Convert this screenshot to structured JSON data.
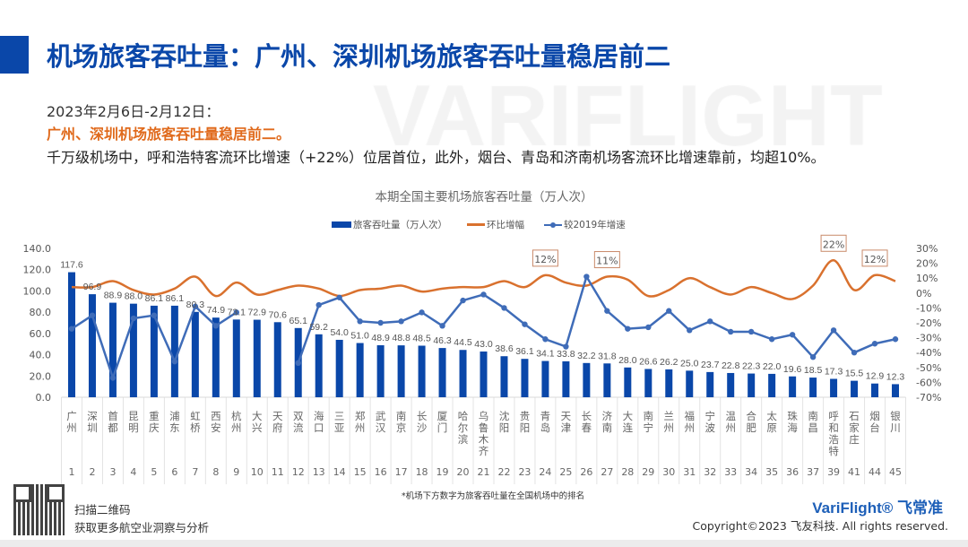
{
  "header": {
    "title": "机场旅客吞吐量：广州、深圳机场旅客吞吐量稳居前二",
    "watermark": "VARIFLIGHT"
  },
  "summary": {
    "date_range": "2023年2月6日-2月12日：",
    "highlight": "广州、深圳机场旅客吞吐量稳居前二。",
    "detail": "千万级机场中，呼和浩特客流环比增速（+22%）位居首位，此外，烟台、青岛和济南机场客流环比增速靠前，均超10%。"
  },
  "colors": {
    "accent": "#0a47a9",
    "bar": "#0a47a9",
    "mom_line": "#d9712e",
    "vs2019_line": "#3f6cb8",
    "highlight_text": "#e06a1c"
  },
  "chart_data": {
    "type": "bar+line",
    "title": "本期全国主要机场旅客吞吐量（万人次）",
    "legend_position": "top",
    "categories": [
      "广州",
      "深圳",
      "首都",
      "昆明",
      "重庆",
      "浦东",
      "虹桥",
      "西安",
      "杭州",
      "大兴",
      "天府",
      "双流",
      "海口",
      "三亚",
      "郑州",
      "武汉",
      "南京",
      "长沙",
      "厦门",
      "哈尔滨",
      "乌鲁木齐",
      "沈阳",
      "贵阳",
      "青岛",
      "天津",
      "长春",
      "济南",
      "大连",
      "南宁",
      "兰州",
      "福州",
      "宁波",
      "温州",
      "合肥",
      "太原",
      "珠海",
      "南昌",
      "呼和浩特",
      "石家庄",
      "烟台",
      "银川"
    ],
    "ranks": [
      "1",
      "2",
      "3",
      "4",
      "5",
      "6",
      "7",
      "8",
      "9",
      "10",
      "11",
      "12",
      "13",
      "14",
      "15",
      "16",
      "17",
      "18",
      "19",
      "20",
      "21",
      "22",
      "23",
      "24",
      "25",
      "26",
      "27",
      "28",
      "29",
      "30",
      "31",
      "32",
      "33",
      "34",
      "35",
      "36",
      "37",
      "39",
      "41",
      "44",
      "45"
    ],
    "series": [
      {
        "name": "旅客吞吐量（万人次）",
        "type": "bar",
        "axis": "left",
        "values": [
          117.6,
          96.9,
          88.9,
          88.0,
          86.1,
          86.1,
          80.3,
          74.9,
          73.1,
          72.9,
          70.6,
          65.1,
          59.2,
          54.0,
          51.0,
          48.9,
          48.8,
          48.5,
          46.3,
          44.5,
          43.0,
          38.6,
          36.1,
          34.1,
          33.8,
          32.2,
          31.8,
          28.0,
          26.6,
          26.2,
          25.0,
          23.7,
          22.8,
          22.3,
          22.0,
          19.6,
          18.5,
          17.3,
          15.5,
          12.9,
          12.3
        ],
        "labels": [
          "117.6",
          "96.9",
          "88.9",
          "88.0",
          "86.1",
          "86.1",
          "80.3",
          "74.9",
          "73.1",
          "72.9",
          "70.6",
          "65.1",
          "59.2",
          "54.0",
          "51.0",
          "48.9",
          "48.8",
          "48.5",
          "46.3",
          "44.5",
          "43.0",
          "38.6",
          "36.1",
          "34.1",
          "33.8",
          "32.2",
          "31.8",
          "28.0",
          "26.6",
          "26.2",
          "25.0",
          "23.7",
          "22.8",
          "22.3",
          "22.0",
          "19.6",
          "18.5",
          "17.3",
          "15.5",
          "12.9",
          "12.3"
        ]
      },
      {
        "name": "环比增幅",
        "type": "line",
        "smooth": true,
        "axis": "right",
        "values": [
          4,
          4,
          8,
          2,
          -1,
          3,
          11,
          -2,
          7,
          -1,
          2,
          5,
          3,
          -2,
          2,
          3,
          5,
          1,
          3,
          4,
          4,
          8,
          4,
          12,
          7,
          5,
          11,
          9,
          -2,
          2,
          10,
          4,
          -1,
          4,
          0,
          -4,
          5,
          22,
          2,
          12,
          8
        ]
      },
      {
        "name": "较2019年增速",
        "type": "line",
        "markers": true,
        "axis": "right",
        "values": [
          -24,
          -15,
          -57,
          -17,
          -15,
          -46,
          -9,
          -22,
          -13,
          null,
          null,
          -47,
          -8,
          -3,
          -19,
          -20,
          -19,
          -13,
          -22,
          -5,
          -1,
          -10,
          -21,
          -31,
          -36,
          11,
          -12,
          -24,
          -23,
          -12,
          -25,
          -19,
          -26,
          -26,
          -31,
          -28,
          -43,
          -25,
          -40,
          -34,
          -31
        ]
      }
    ],
    "annotations": [
      {
        "category": "青岛",
        "series": "环比增幅",
        "text": "12%"
      },
      {
        "category": "济南",
        "series": "环比增幅",
        "text": "11%"
      },
      {
        "category": "呼和浩特",
        "series": "环比增幅",
        "text": "22%"
      },
      {
        "category": "烟台",
        "series": "环比增幅",
        "text": "12%"
      }
    ],
    "y_left": {
      "min": 0,
      "max": 140,
      "ticks": [
        "0.0",
        "20.0",
        "40.0",
        "60.0",
        "80.0",
        "100.0",
        "120.0",
        "140.0"
      ]
    },
    "y_right": {
      "min": -70,
      "max": 30,
      "unit": "%",
      "ticks": [
        "-70%",
        "-60%",
        "-50%",
        "-40%",
        "-30%",
        "-20%",
        "-10%",
        "0%",
        "10%",
        "20%",
        "30%"
      ]
    },
    "grid": false,
    "footnote": "*机场下方数字为旅客吞吐量在全国机场中的排名"
  },
  "footer": {
    "qr_line1": "扫描二维码",
    "qr_line2": "获取更多航空业洞察与分析",
    "brand": "VariFlight® 飞常准",
    "copyright": "Copyright©2023 飞友科技. All rights reserved."
  }
}
